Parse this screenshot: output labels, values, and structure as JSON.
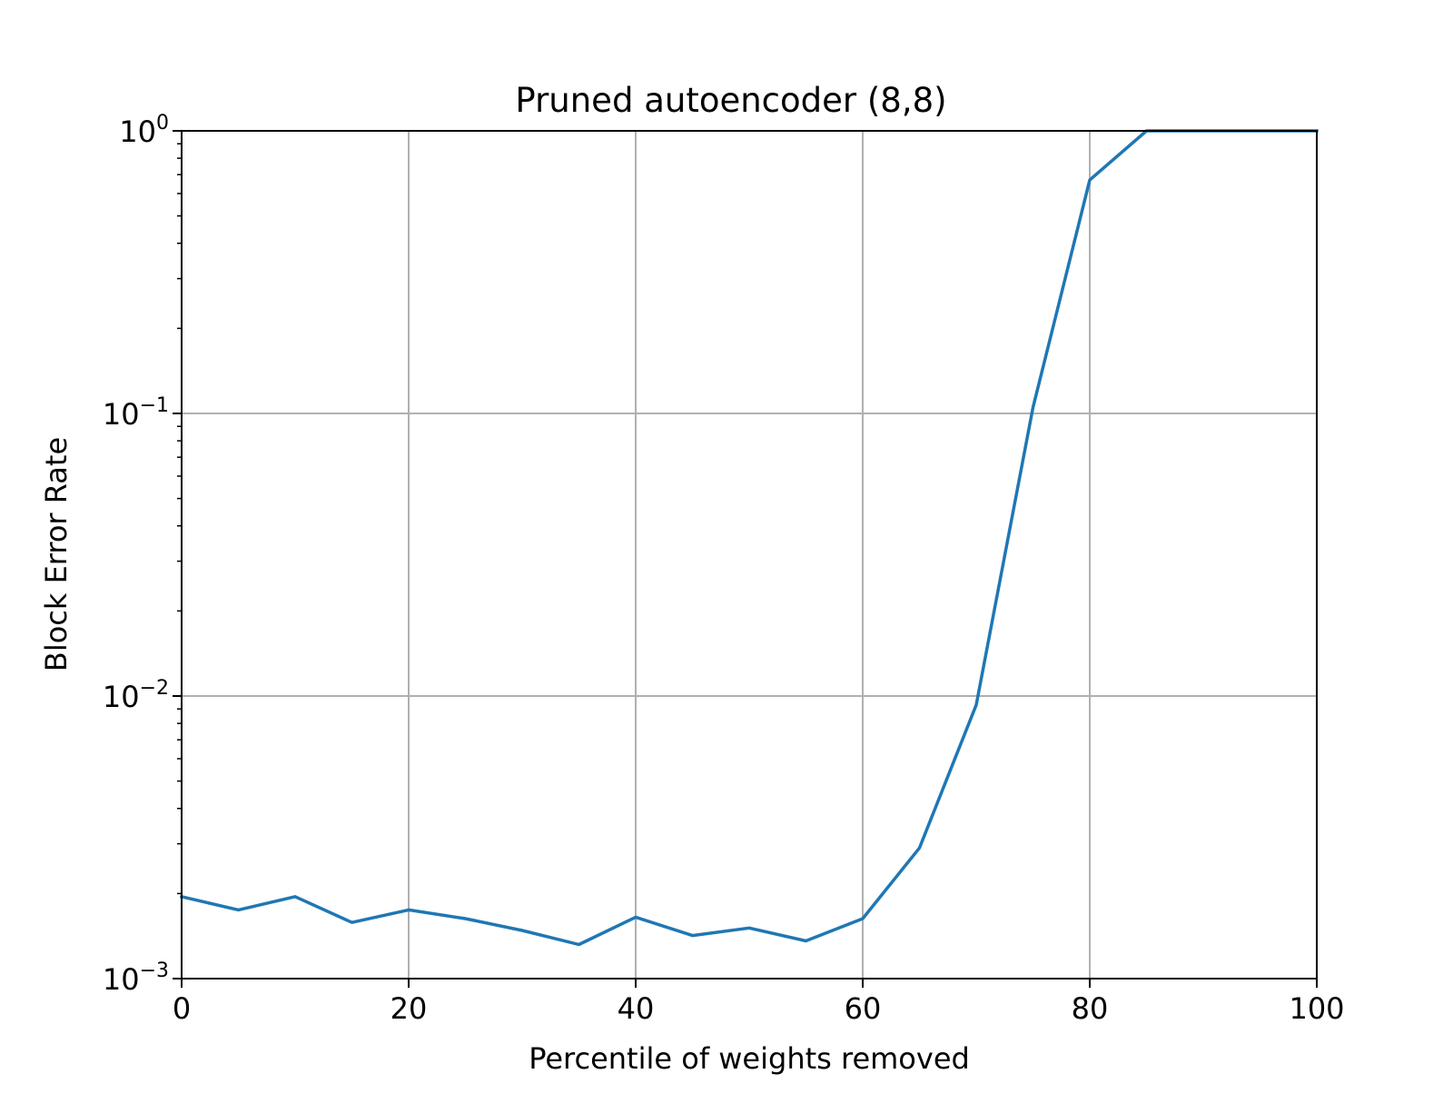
{
  "chart_data": {
    "type": "line",
    "title": "Pruned autoencoder (8,8)",
    "xlabel": "Percentile of weights removed",
    "ylabel": "Block Error Rate",
    "xlim": [
      0,
      100
    ],
    "ylim": [
      0.001,
      1
    ],
    "yscale": "log",
    "grid": true,
    "legend": "none",
    "colors": {
      "line": "#1f77b4",
      "grid": "#b0b0b0",
      "axes": "#000000"
    },
    "xticks": [
      {
        "value": 0,
        "label": "0"
      },
      {
        "value": 20,
        "label": "20"
      },
      {
        "value": 40,
        "label": "40"
      },
      {
        "value": 60,
        "label": "60"
      },
      {
        "value": 80,
        "label": "80"
      },
      {
        "value": 100,
        "label": "100"
      }
    ],
    "yticks": [
      {
        "value": 1,
        "base": "10",
        "exp": "0"
      },
      {
        "value": 0.1,
        "base": "10",
        "exp": "−1"
      },
      {
        "value": 0.01,
        "base": "10",
        "exp": "−2"
      },
      {
        "value": 0.001,
        "base": "10",
        "exp": "−3"
      }
    ],
    "series": [
      {
        "x": [
          0,
          5,
          10,
          15,
          20,
          25,
          30,
          35,
          40,
          45,
          50,
          55,
          60,
          65,
          70,
          75,
          80,
          85,
          90,
          95,
          100
        ],
        "y": [
          0.00195,
          0.00175,
          0.00195,
          0.00158,
          0.00175,
          0.00163,
          0.00148,
          0.00132,
          0.00165,
          0.00142,
          0.00151,
          0.00136,
          0.00163,
          0.0029,
          0.0093,
          0.105,
          0.67,
          1.0,
          1.0,
          1.0,
          1.0
        ]
      }
    ]
  }
}
